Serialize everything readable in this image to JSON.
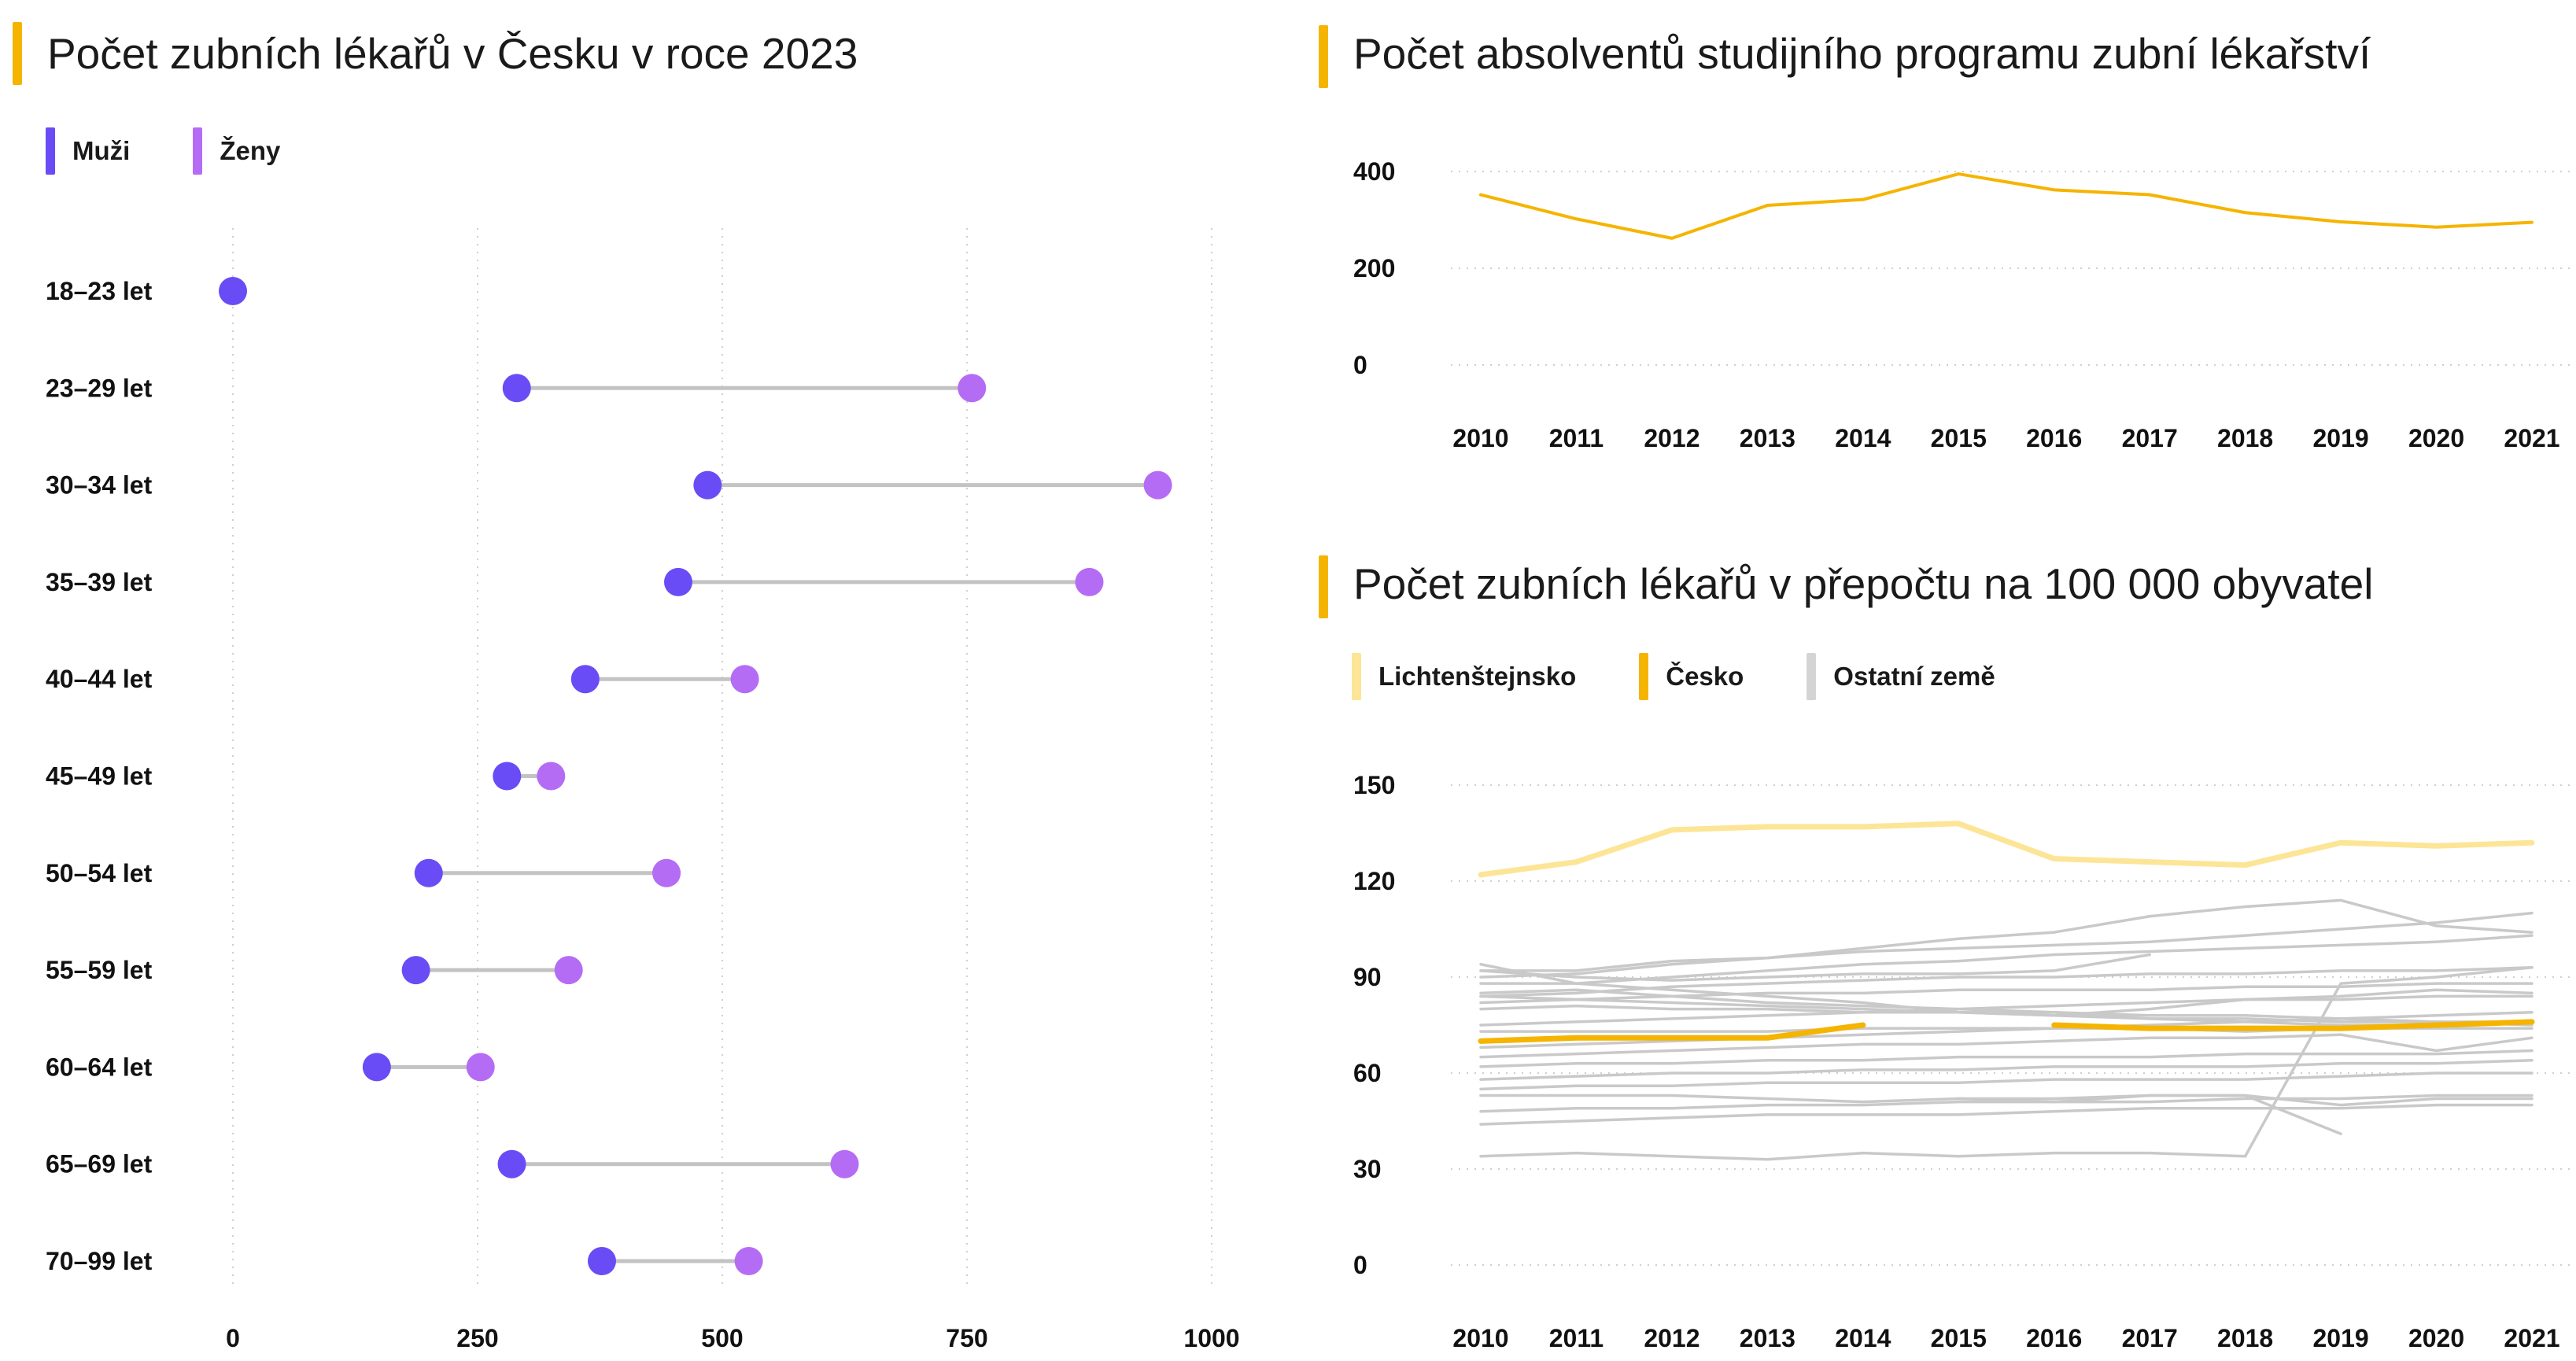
{
  "colors": {
    "muzi": "#6a4cf6",
    "zeny": "#b56cf5",
    "accent": "#f5b400",
    "lichtenstejnsko": "#fde597",
    "cesko": "#f5b400",
    "ostatni": "#c9c9c9",
    "connector": "#c3c3c3",
    "grid": "#cfcfcf"
  },
  "chart_data": [
    {
      "type": "dumbbell",
      "title": "Počet zubních lékařů v Česku v roce 2023",
      "legend": [
        "Muži",
        "Ženy"
      ],
      "categories": [
        "18–23 let",
        "23–29 let",
        "30–34 let",
        "35–39 let",
        "40–44 let",
        "45–49 let",
        "50–54 let",
        "55–59 let",
        "60–64 let",
        "65–69 let",
        "70–99 let"
      ],
      "series": [
        {
          "name": "Muži",
          "values": [
            0,
            290,
            485,
            455,
            360,
            280,
            200,
            187,
            147,
            285,
            377
          ]
        },
        {
          "name": "Ženy",
          "values": [
            0,
            755,
            945,
            875,
            523,
            325,
            443,
            343,
            253,
            625,
            527
          ]
        }
      ],
      "xlim": [
        0,
        1000
      ],
      "xticks": [
        "0",
        "250",
        "500",
        "750",
        "1000"
      ],
      "grid": "vertical dotted"
    },
    {
      "type": "line",
      "title": "Počet absolventů studijního programu zubní lékařství",
      "x": [
        "2010",
        "2011",
        "2012",
        "2013",
        "2014",
        "2015",
        "2016",
        "2017",
        "2018",
        "2019",
        "2020",
        "2021"
      ],
      "series": [
        {
          "values": [
            352,
            302,
            262,
            330,
            342,
            395,
            362,
            352,
            315,
            296,
            285,
            295
          ]
        }
      ],
      "ylim": [
        0,
        400
      ],
      "yticks": [
        "0",
        "200",
        "400"
      ],
      "grid": "horizontal dotted"
    },
    {
      "type": "line",
      "title": "Počet zubních lékařů v přepočtu na 100 000 obyvatel",
      "legend": [
        "Lichtenštejnsko",
        "Česko",
        "Ostatní země"
      ],
      "x": [
        "2010",
        "2011",
        "2012",
        "2013",
        "2014",
        "2015",
        "2016",
        "2017",
        "2018",
        "2019",
        "2020",
        "2021"
      ],
      "ylim": [
        0,
        150
      ],
      "yticks": [
        "0",
        "30",
        "60",
        "90",
        "120",
        "150"
      ],
      "grid": "horizontal dotted",
      "series": [
        {
          "name": "Lichtenštejnsko",
          "values": [
            122,
            126,
            136,
            137,
            137,
            138,
            127,
            126,
            125,
            132,
            131,
            132
          ]
        },
        {
          "name": "Česko",
          "values": [
            70,
            71,
            71,
            71,
            75,
            null,
            75,
            74,
            74,
            74,
            75,
            76
          ]
        },
        {
          "name": "Ostatní země",
          "values": [
            94,
            88,
            86,
            84,
            82,
            79,
            79,
            77,
            76,
            75,
            75,
            76
          ]
        },
        {
          "values": [
            85,
            86,
            84,
            82,
            81,
            80,
            79,
            78,
            78,
            77,
            76,
            76
          ]
        },
        {
          "values": [
            80,
            81,
            80,
            80,
            79,
            79,
            78,
            77,
            77,
            76,
            76,
            75
          ]
        },
        {
          "values": [
            88,
            88,
            90,
            92,
            94,
            95,
            97,
            98,
            99,
            100,
            101,
            103
          ]
        },
        {
          "values": [
            84,
            85,
            87,
            88,
            89,
            90,
            90,
            91,
            91,
            92,
            92,
            93
          ]
        },
        {
          "values": [
            82,
            83,
            84,
            85,
            85,
            86,
            86,
            86,
            87,
            87,
            88,
            88
          ]
        },
        {
          "values": [
            92,
            92,
            95,
            96,
            98,
            99,
            100,
            101,
            103,
            105,
            107,
            110
          ]
        },
        {
          "values": [
            90,
            91,
            94,
            96,
            99,
            102,
            104,
            109,
            112,
            114,
            106,
            104
          ]
        },
        {
          "values": [
            84,
            83,
            82,
            81,
            80,
            79,
            78,
            80,
            83,
            84,
            86,
            85
          ]
        },
        {
          "values": [
            75,
            76,
            77,
            78,
            79,
            80,
            81,
            82,
            83,
            83,
            84,
            84
          ]
        },
        {
          "values": [
            73,
            73,
            73,
            73,
            74,
            74,
            74,
            74,
            73,
            74,
            74,
            74
          ]
        },
        {
          "values": [
            68,
            69,
            70,
            71,
            72,
            73,
            74,
            75,
            76,
            77,
            78,
            79
          ]
        },
        {
          "values": [
            62,
            63,
            63,
            64,
            64,
            65,
            65,
            65,
            66,
            66,
            66,
            67
          ]
        },
        {
          "values": [
            65,
            66,
            67,
            68,
            69,
            69,
            70,
            71,
            71,
            72,
            67,
            71
          ]
        },
        {
          "values": [
            58,
            59,
            60,
            60,
            61,
            61,
            62,
            62,
            62,
            63,
            63,
            64
          ]
        },
        {
          "values": [
            55,
            56,
            56,
            57,
            57,
            57,
            58,
            58,
            58,
            59,
            60,
            60
          ]
        },
        {
          "values": [
            53,
            53,
            53,
            52,
            51,
            52,
            51,
            53,
            53,
            50,
            52,
            52
          ]
        },
        {
          "values": [
            48,
            49,
            49,
            50,
            50,
            51,
            51,
            51,
            52,
            52,
            53,
            53
          ]
        },
        {
          "values": [
            44,
            45,
            46,
            47,
            47,
            47,
            48,
            49,
            49,
            49,
            50,
            50
          ]
        },
        {
          "values": [
            34,
            35,
            34,
            33,
            35,
            34,
            35,
            35,
            34,
            null,
            null,
            null
          ]
        },
        {
          "values": [
            null,
            null,
            null,
            null,
            null,
            null,
            null,
            null,
            34,
            88,
            90,
            93
          ]
        },
        {
          "values": [
            null,
            null,
            null,
            null,
            null,
            52,
            52,
            53,
            53,
            41,
            null,
            null
          ]
        },
        {
          "values": [
            92,
            90,
            89,
            90,
            91,
            91,
            92,
            97,
            null,
            null,
            null,
            null
          ]
        }
      ]
    }
  ]
}
